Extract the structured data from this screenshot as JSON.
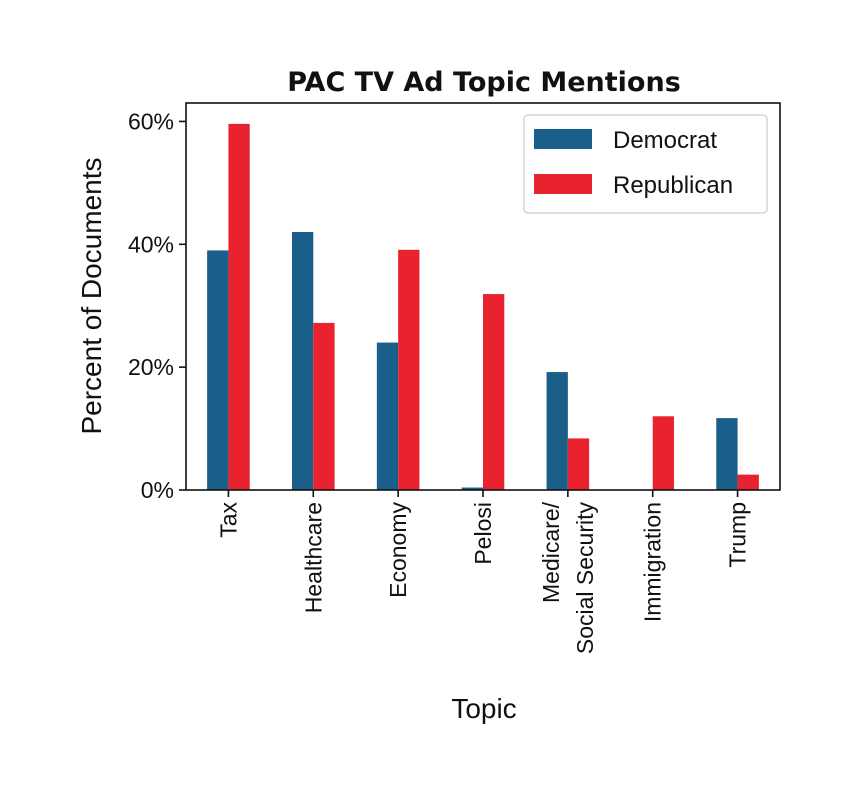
{
  "chart_data": {
    "type": "bar",
    "title": "PAC TV Ad Topic Mentions",
    "xlabel": "Topic",
    "ylabel": "Percent of Documents",
    "categories": [
      "Tax",
      "Healthcare",
      "Economy",
      "Pelosi",
      "Medicare/\nSocial Security",
      "Immigration",
      "Trump"
    ],
    "series": [
      {
        "name": "Democrat",
        "color": "#1a5e8a",
        "values": [
          39.0,
          42.0,
          24.0,
          0.4,
          19.2,
          0.0,
          11.7
        ]
      },
      {
        "name": "Republican",
        "color": "#e8232f",
        "values": [
          59.6,
          27.2,
          39.1,
          31.9,
          8.4,
          12.0,
          2.5
        ]
      }
    ],
    "ylim": [
      0,
      63
    ],
    "yticks": [
      0,
      20,
      40,
      60
    ],
    "ytick_labels": [
      "0%",
      "20%",
      "40%",
      "60%"
    ],
    "grid": false,
    "legend_position": "top-right"
  }
}
